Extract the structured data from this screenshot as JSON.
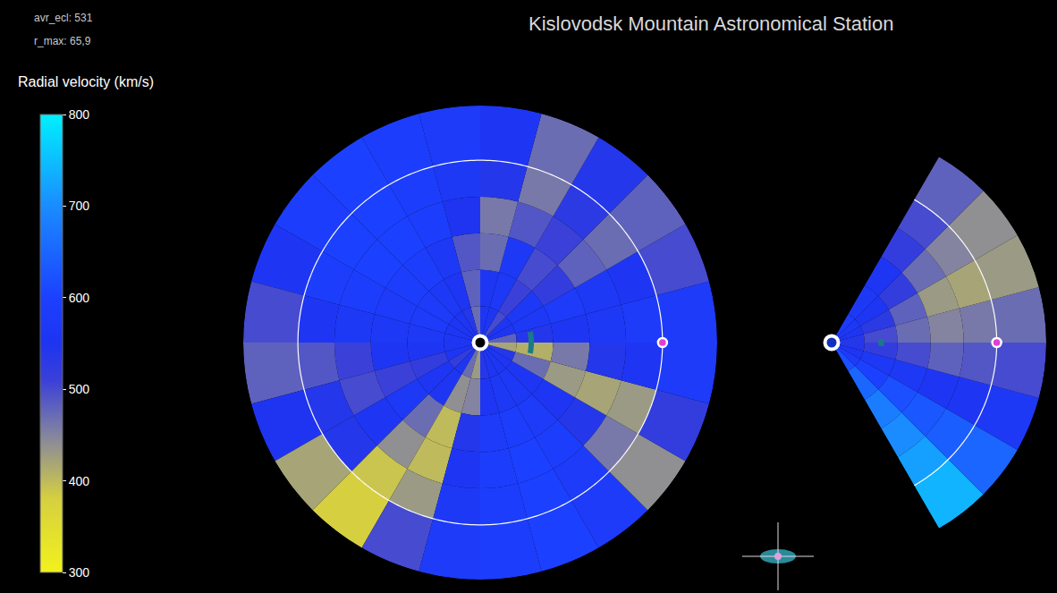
{
  "header": {
    "title": "Kislovodsk Mountain Astronomical Station",
    "info": [
      "avr_ecl: 531",
      "r_max: 65,9"
    ]
  },
  "colorbar": {
    "title": "Radial velocity (km/s)",
    "range": [
      300,
      800
    ],
    "ticks": [
      300,
      400,
      500,
      600,
      700,
      800
    ]
  },
  "chart_data": [
    {
      "type": "barpolar",
      "tick_labels": false,
      "rlim": [
        0,
        1.3
      ],
      "thetalim": [
        0,
        360
      ],
      "r_edges": [
        0,
        0.2,
        0.4,
        0.6,
        0.8,
        1.0,
        1.3
      ],
      "theta_edges": [
        0,
        15,
        30,
        45,
        60,
        75,
        90,
        105,
        120,
        135,
        150,
        165,
        180,
        195,
        210,
        225,
        240,
        255,
        270,
        285,
        300,
        315,
        330,
        345,
        360
      ],
      "cells": [
        [
          480,
          560,
          560,
          500,
          560,
          560,
          470,
          540,
          560,
          560,
          560,
          560,
          560,
          560,
          520,
          560,
          470,
          430,
          540,
          560,
          560,
          560,
          540,
          420
        ],
        [
          540,
          570,
          570,
          510,
          570,
          560,
          480,
          560,
          570,
          580,
          580,
          570,
          560,
          520,
          560,
          560,
          440,
          450,
          560,
          570,
          570,
          560,
          470,
          410
        ],
        [
          560,
          580,
          520,
          500,
          570,
          470,
          490,
          570,
          590,
          590,
          580,
          570,
          560,
          510,
          570,
          470,
          400,
          540,
          580,
          590,
          580,
          560,
          430,
          460
        ],
        [
          570,
          570,
          480,
          510,
          490,
          460,
          550,
          590,
          600,
          600,
          590,
          570,
          510,
          500,
          560,
          440,
          400,
          560,
          590,
          600,
          590,
          540,
          420,
          540
        ],
        [
          580,
          560,
          470,
          530,
          460,
          540,
          570,
          590,
          600,
          600,
          590,
          560,
          490,
          540,
          540,
          390,
          430,
          570,
          590,
          600,
          580,
          460,
          430,
          560
        ],
        [
          580,
          500,
          480,
          540,
          470,
          560,
          580,
          590,
          600,
          590,
          560,
          500,
          480,
          550,
          420,
          380,
          500,
          580,
          590,
          600,
          580,
          440,
          520,
          580
        ]
      ],
      "orbit_r": 1,
      "sun": {
        "r": 0,
        "theta": 0
      },
      "earth": {
        "r": 1,
        "theta": 0
      },
      "cme": {
        "r": 0.28,
        "theta": [
          -12,
          12
        ]
      }
    },
    {
      "type": "barpolar",
      "tick_labels": false,
      "rlim": [
        0,
        1.3
      ],
      "thetalim": [
        -60,
        60
      ],
      "r_edges": [
        0,
        0.2,
        0.4,
        0.6,
        0.8,
        1.0,
        1.3
      ],
      "theta_edges": [
        -60,
        -45,
        -30,
        -15,
        0,
        15,
        30,
        45,
        60
      ],
      "cells": [
        [
          620,
          580,
          560,
          540,
          540,
          560,
          570,
          580
        ],
        [
          650,
          600,
          570,
          520,
          500,
          530,
          560,
          570
        ],
        [
          680,
          620,
          570,
          500,
          470,
          480,
          520,
          560
        ],
        [
          700,
          630,
          560,
          480,
          450,
          430,
          470,
          520
        ],
        [
          720,
          640,
          560,
          490,
          460,
          420,
          450,
          500
        ],
        [
          740,
          650,
          570,
          500,
          470,
          430,
          440,
          480
        ]
      ],
      "orbit_r": 1,
      "sun": {
        "r": 0,
        "theta": 0
      },
      "earth": {
        "r": 1,
        "theta": 0
      },
      "cme": {
        "r": 0.3,
        "theta": [
          -4,
          4
        ]
      }
    }
  ]
}
